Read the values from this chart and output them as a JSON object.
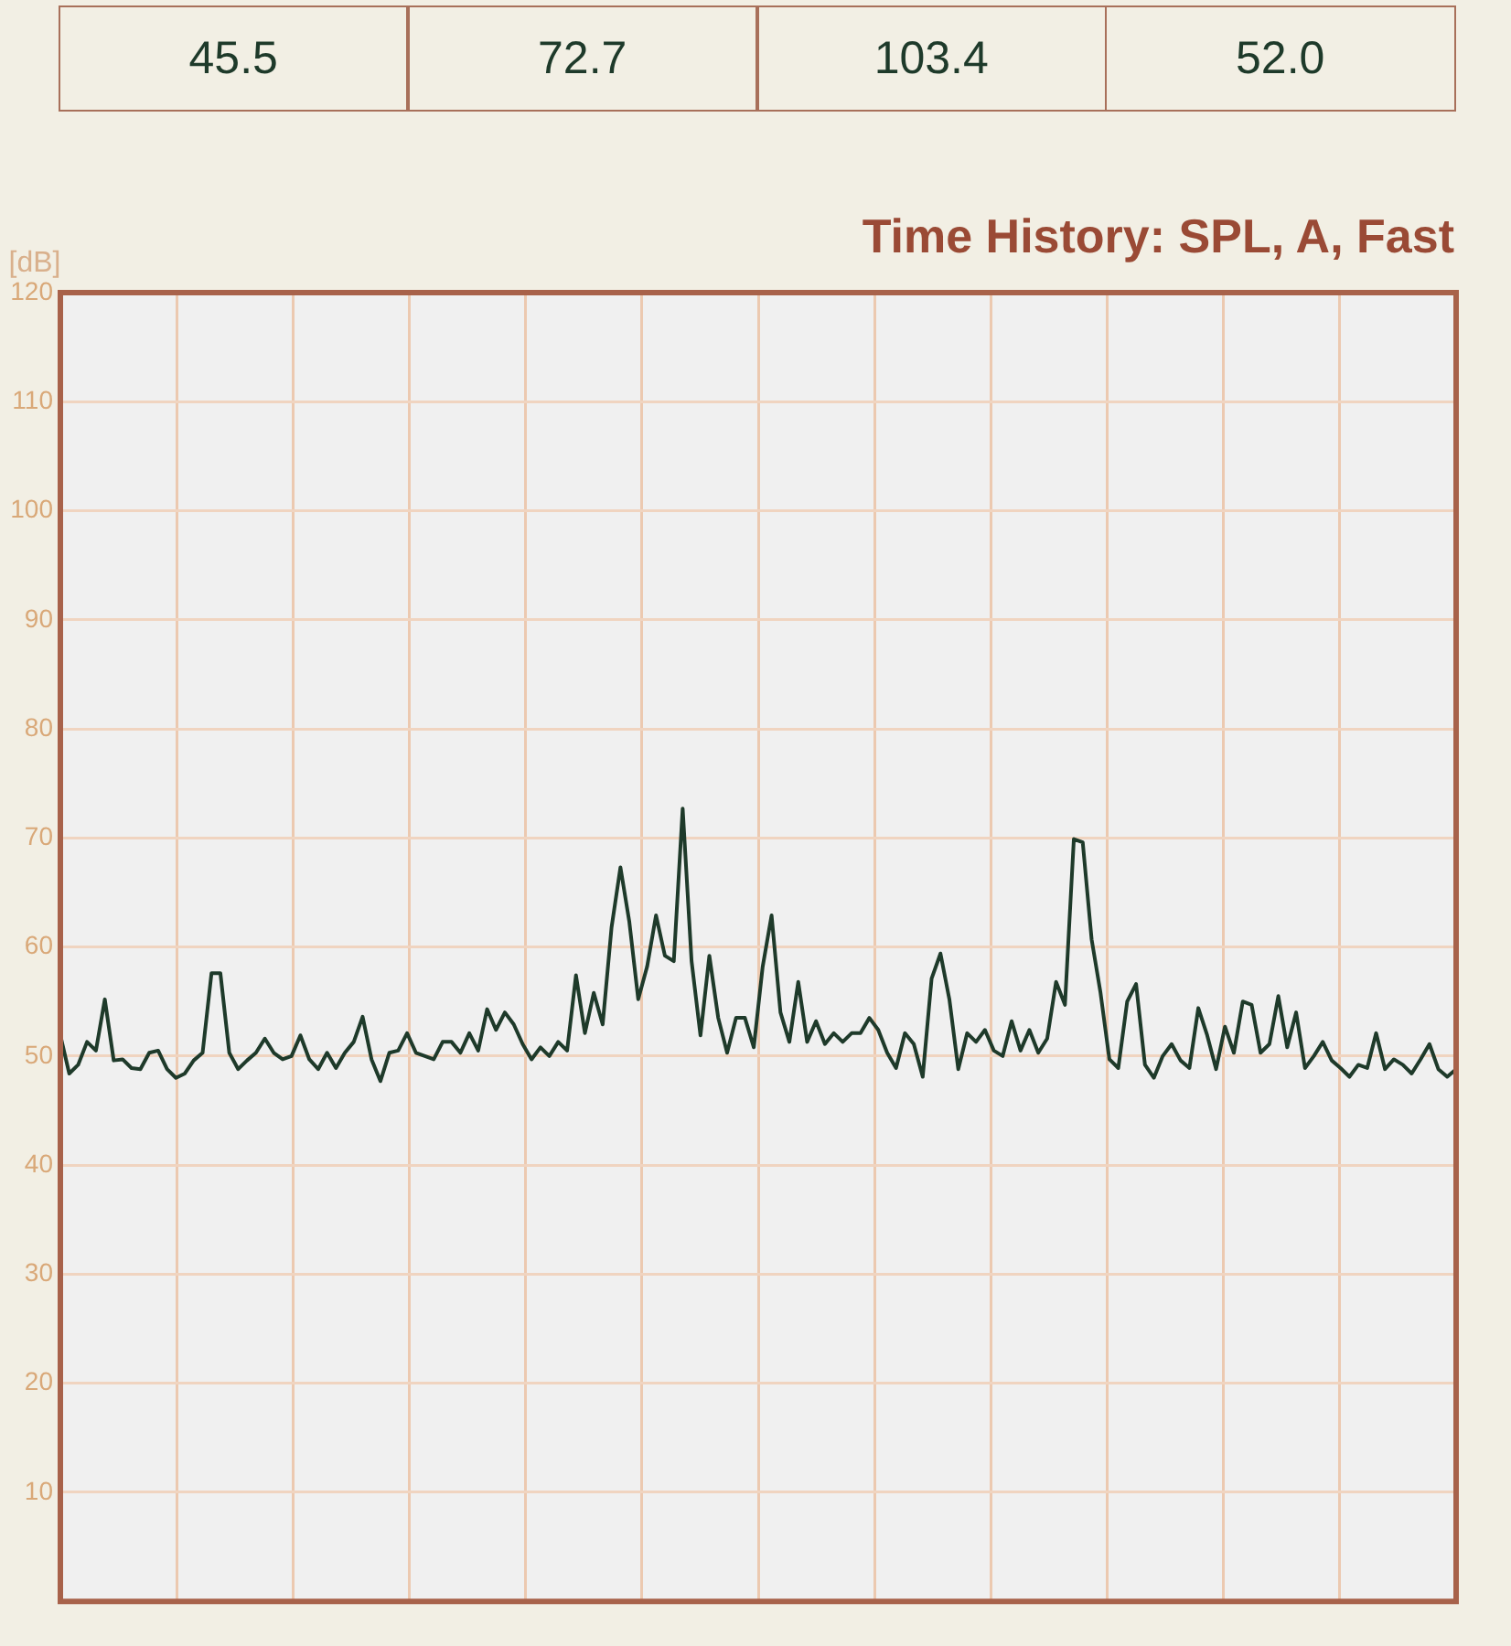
{
  "chart_data": {
    "type": "line",
    "title": "Time History: SPL, A, Fast",
    "ylabel": "[dB]",
    "annotations": [
      "45.5",
      "72.7",
      "103.4",
      "52.0"
    ],
    "categories": [
      null,
      null,
      null,
      null,
      null,
      null,
      null,
      null,
      null,
      null,
      null,
      null,
      null,
      null,
      null,
      null,
      null,
      null,
      null,
      null,
      null,
      null,
      null,
      null,
      null,
      null,
      null,
      null,
      null,
      null,
      null,
      null,
      null,
      null,
      null,
      null,
      null,
      null,
      null,
      null,
      null,
      null,
      null,
      null,
      null,
      null,
      null,
      null,
      null,
      null,
      null,
      null,
      null,
      null,
      null,
      null,
      null,
      null,
      null,
      null,
      null,
      null,
      null,
      null,
      null,
      null,
      null,
      null,
      null,
      null,
      null,
      null,
      null,
      null,
      null,
      null,
      null,
      null,
      null,
      null,
      null,
      null,
      null,
      null,
      null,
      null,
      null,
      null,
      null,
      null,
      null,
      null,
      null,
      null,
      null,
      null,
      null,
      null,
      null,
      null,
      null,
      null,
      null,
      null,
      null,
      null,
      null,
      null,
      null,
      null,
      null,
      null,
      null,
      null,
      null,
      null,
      null,
      null,
      null,
      null,
      null,
      null,
      null,
      null,
      null,
      null,
      null,
      null,
      null,
      null,
      null,
      null,
      null,
      null,
      null,
      null,
      null,
      null,
      null,
      null,
      null,
      null,
      null,
      null,
      null,
      null,
      null,
      null,
      null,
      null,
      null,
      null,
      null,
      null,
      null,
      null,
      null,
      null
    ],
    "series": [
      {
        "color": "#1e3a2a",
        "values": [
          51.9,
          48.4,
          49.2,
          51.3,
          50.5,
          55.2,
          49.6,
          49.7,
          48.9,
          48.8,
          50.3,
          50.5,
          48.8,
          48.0,
          48.4,
          49.6,
          50.3,
          57.6,
          57.6,
          50.3,
          48.8,
          49.6,
          50.3,
          51.6,
          50.3,
          49.7,
          50.0,
          51.9,
          49.7,
          48.8,
          50.3,
          48.9,
          50.3,
          51.3,
          53.6,
          49.7,
          47.7,
          50.3,
          50.5,
          52.1,
          50.3,
          50.0,
          49.7,
          51.3,
          51.3,
          50.3,
          52.1,
          50.5,
          54.3,
          52.4,
          54.0,
          52.9,
          51.1,
          49.7,
          50.8,
          50.0,
          51.3,
          50.5,
          57.4,
          52.1,
          55.8,
          52.9,
          61.8,
          67.3,
          62.3,
          55.2,
          58.2,
          62.9,
          59.2,
          58.7,
          72.7,
          58.7,
          51.9,
          59.2,
          53.5,
          50.3,
          53.5,
          53.5,
          50.8,
          58.2,
          62.9,
          54.0,
          51.3,
          56.8,
          51.3,
          53.2,
          51.1,
          52.1,
          51.3,
          52.1,
          52.1,
          53.5,
          52.4,
          50.3,
          48.9,
          52.1,
          51.1,
          48.1,
          57.1,
          59.4,
          55.2,
          48.8,
          52.1,
          51.3,
          52.4,
          50.5,
          50.0,
          53.2,
          50.5,
          52.4,
          50.3,
          51.6,
          56.8,
          54.7,
          69.9,
          69.6,
          60.7,
          55.8,
          49.7,
          48.9,
          55.0,
          56.6,
          49.2,
          48.0,
          50.0,
          51.1,
          49.6,
          48.9,
          54.4,
          51.9,
          48.8,
          52.7,
          50.3,
          55.0,
          54.7,
          50.3,
          51.1,
          55.5,
          50.8,
          54.0,
          48.9,
          50.0,
          51.3,
          49.6,
          48.9,
          48.1,
          49.2,
          48.9,
          52.1,
          48.8,
          49.7,
          49.2,
          48.4,
          49.7,
          51.1,
          48.8,
          48.1,
          48.8
        ]
      }
    ],
    "ylim": [
      0,
      120
    ],
    "yticks": [
      10,
      20,
      30,
      40,
      50,
      60,
      70,
      80,
      90,
      100,
      110,
      120
    ],
    "grid": true
  }
}
